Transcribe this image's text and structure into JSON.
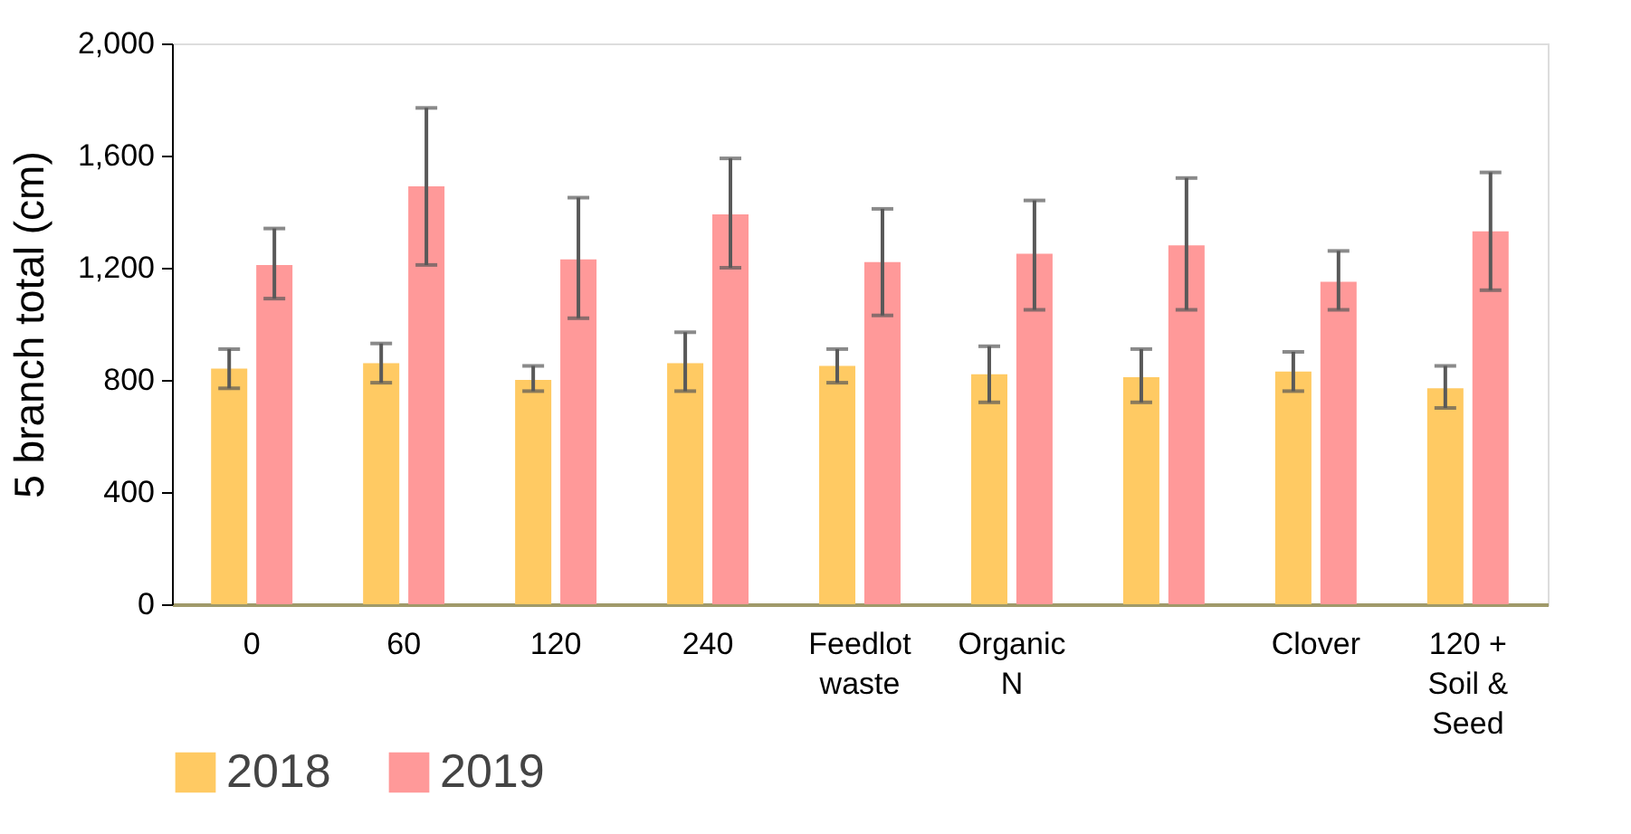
{
  "chart_data": {
    "type": "bar",
    "ylabel": "5 branch total (cm)",
    "categories": [
      "0",
      "60",
      "120",
      "240",
      "Feedlot\nwaste",
      "Organic\nN",
      null,
      "Clover",
      "120 +\nSoil &\nSeed"
    ],
    "series": [
      {
        "name": "2018",
        "color": "#ffca63",
        "values": [
          840,
          860,
          800,
          860,
          850,
          820,
          810,
          830,
          770
        ],
        "errors": [
          [
            770,
            910
          ],
          [
            790,
            930
          ],
          [
            760,
            850
          ],
          [
            760,
            970
          ],
          [
            790,
            910
          ],
          [
            720,
            920
          ],
          [
            720,
            910
          ],
          [
            760,
            900
          ],
          [
            700,
            850
          ]
        ]
      },
      {
        "name": "2019",
        "color": "#ff9999",
        "values": [
          1210,
          1490,
          1230,
          1390,
          1220,
          1250,
          1280,
          1150,
          1330
        ],
        "errors": [
          [
            1090,
            1340
          ],
          [
            1210,
            1770
          ],
          [
            1020,
            1450
          ],
          [
            1200,
            1590
          ],
          [
            1030,
            1410
          ],
          [
            1050,
            1440
          ],
          [
            1050,
            1520
          ],
          [
            1050,
            1260
          ],
          [
            1120,
            1540
          ]
        ]
      }
    ],
    "ylim": [
      0,
      2000
    ],
    "yticks": [
      {
        "value": 0,
        "label": "0"
      },
      {
        "value": 400,
        "label": "400"
      },
      {
        "value": 800,
        "label": "800"
      },
      {
        "value": 1200,
        "label": "1,200"
      },
      {
        "value": 1600,
        "label": "1,600"
      },
      {
        "value": 2000,
        "label": "2,000"
      }
    ],
    "grid": false,
    "legend": "bottom"
  }
}
